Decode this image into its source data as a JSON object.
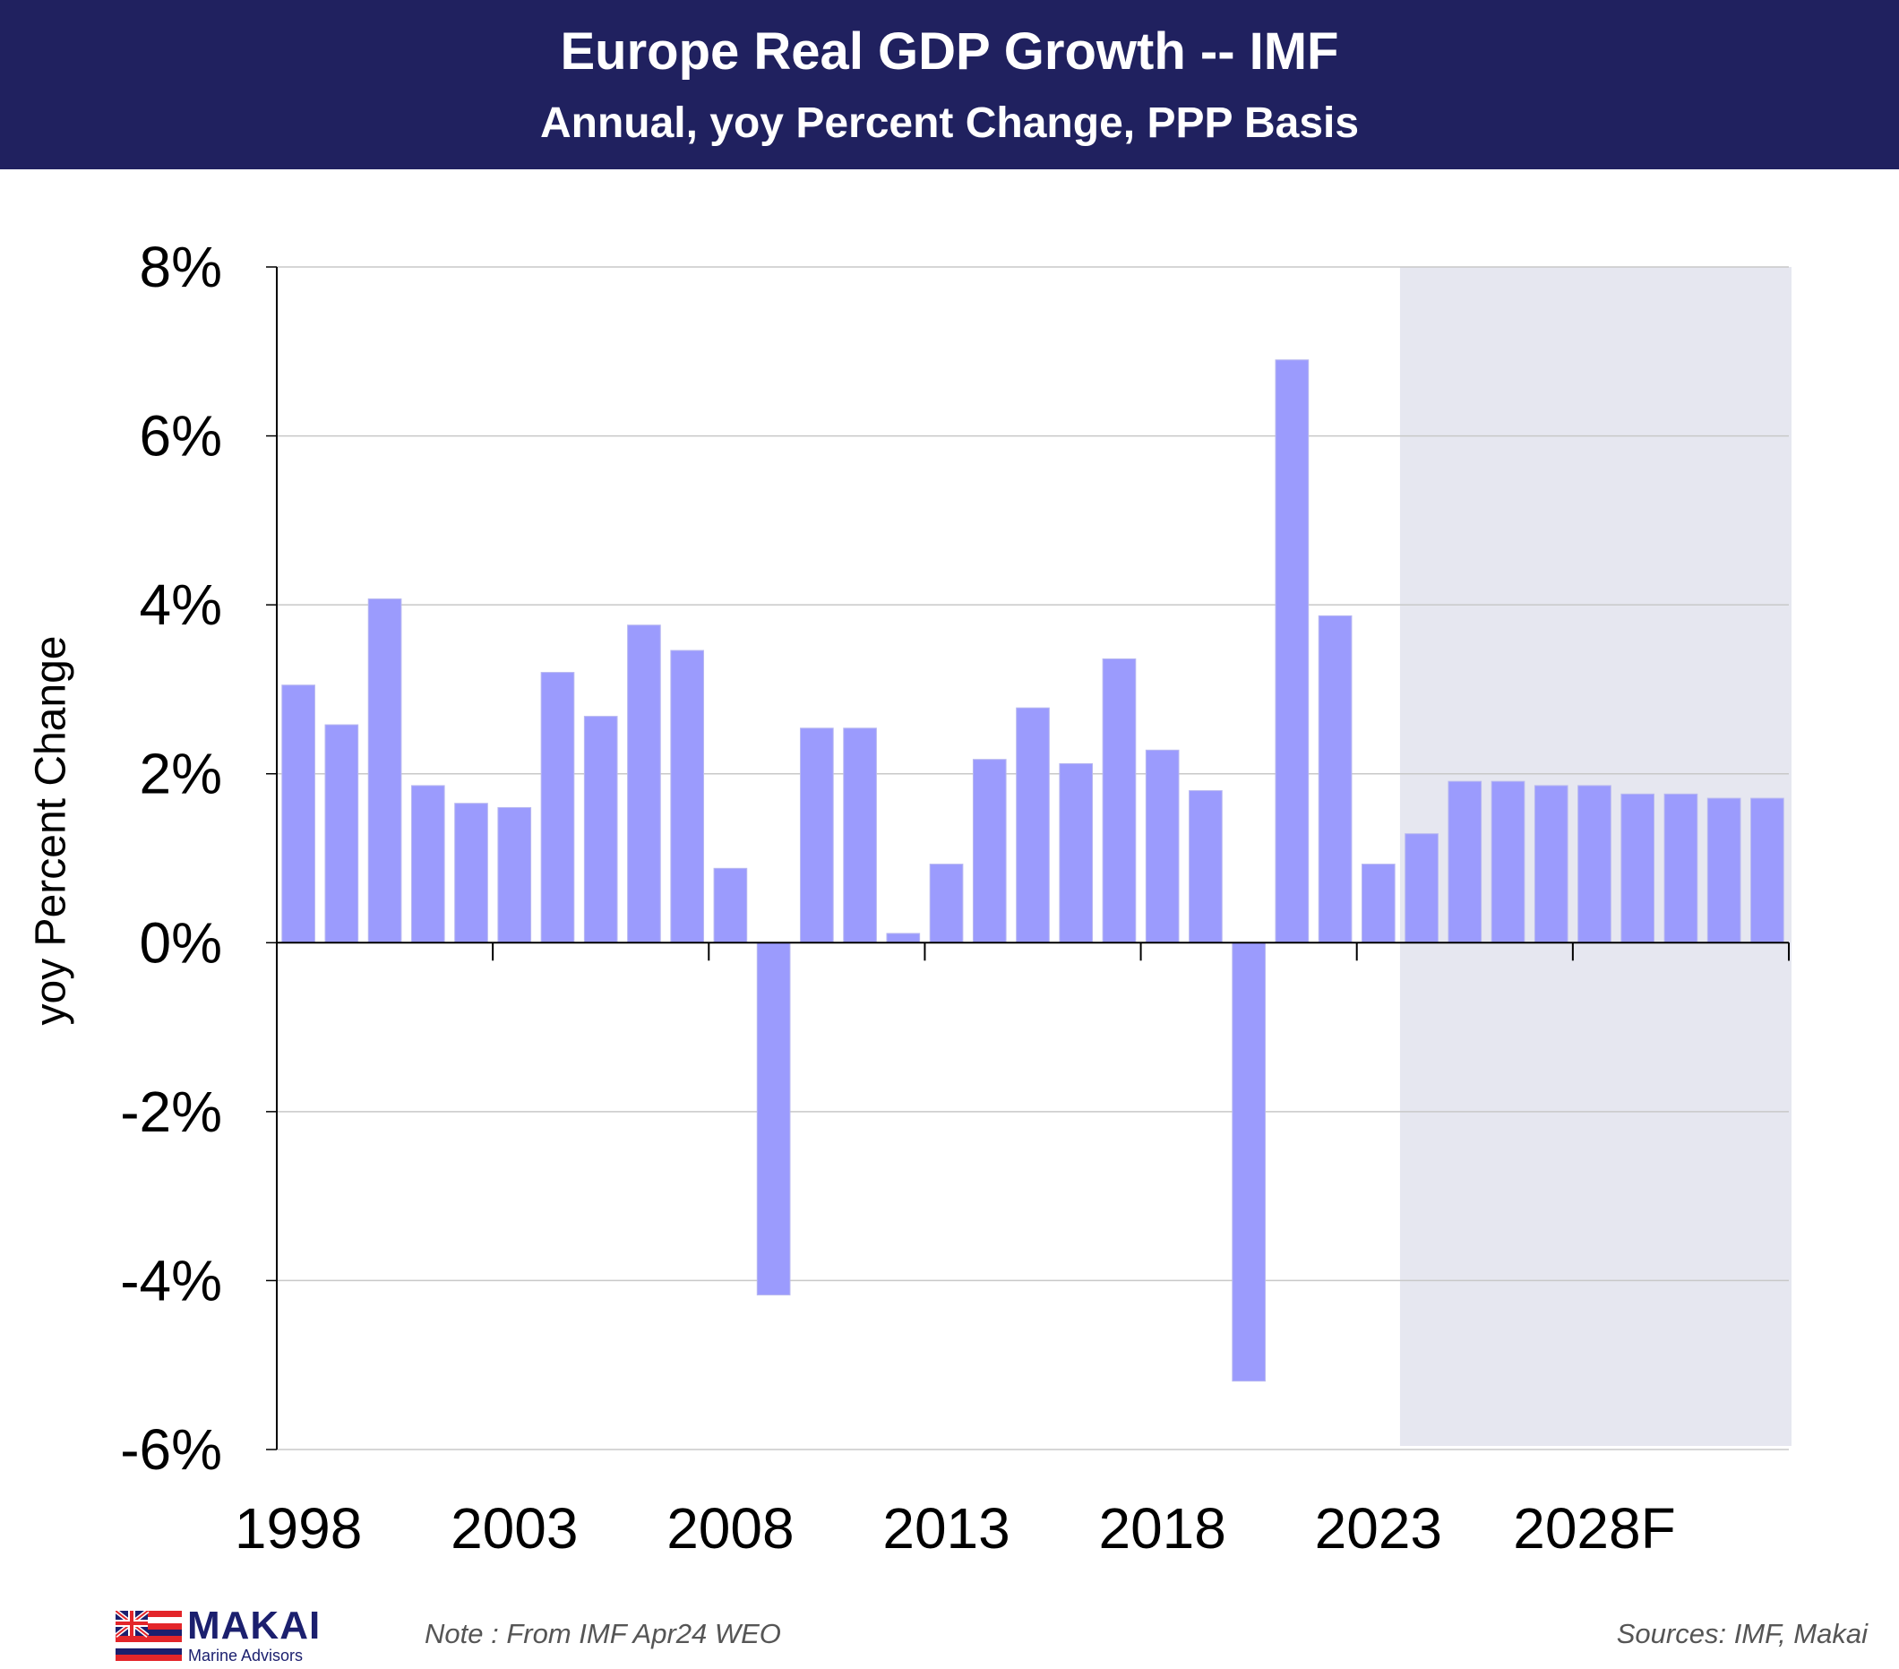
{
  "chart_data": {
    "type": "bar",
    "title": "Europe Real GDP Growth -- IMF",
    "subtitle": "Annual, yoy Percent Change, PPP Basis",
    "xlabel": "",
    "ylabel": "yoy Percent Change",
    "ylim": [
      -6,
      8
    ],
    "yticks": [
      -6,
      -4,
      -2,
      0,
      2,
      4,
      6,
      8
    ],
    "ytick_labels": [
      "-6%",
      "-4%",
      "-2%",
      "0%",
      "2%",
      "4%",
      "6%",
      "8%"
    ],
    "grid": true,
    "categories": [
      "1998",
      "1999",
      "2000",
      "2001",
      "2002",
      "2003",
      "2004",
      "2005",
      "2006",
      "2007",
      "2008",
      "2009",
      "2010",
      "2011",
      "2012",
      "2013",
      "2014",
      "2015",
      "2016",
      "2017",
      "2018",
      "2019",
      "2020",
      "2021",
      "2022",
      "2023",
      "2024",
      "2025",
      "2026",
      "2027",
      "2028",
      "2029",
      "2030",
      "2031",
      "2032"
    ],
    "values": [
      3.05,
      2.58,
      4.07,
      1.86,
      1.65,
      1.6,
      3.2,
      2.68,
      3.76,
      3.46,
      0.88,
      -4.17,
      2.54,
      2.54,
      0.11,
      0.93,
      2.17,
      2.78,
      2.12,
      3.36,
      2.28,
      1.8,
      -5.19,
      6.9,
      3.87,
      0.93,
      1.29,
      1.91,
      1.91,
      1.86,
      1.86,
      1.76,
      1.76,
      1.71,
      1.71
    ],
    "xtick_labels": [
      {
        "index": 0,
        "label": "1998"
      },
      {
        "index": 5,
        "label": "2003"
      },
      {
        "index": 10,
        "label": "2008"
      },
      {
        "index": 15,
        "label": "2013"
      },
      {
        "index": 20,
        "label": "2018"
      },
      {
        "index": 25,
        "label": "2023"
      },
      {
        "index": 30,
        "label": "2028F"
      }
    ],
    "forecast_start_index": 26,
    "bar_color": "#9b9bfd",
    "forecast_shade_color": "#e6e7f0"
  },
  "header": {
    "title": "Europe Real GDP Growth -- IMF",
    "subtitle": "Annual, yoy Percent Change, PPP Basis",
    "bg_color": "#20215f"
  },
  "footer": {
    "note": "Note : From IMF Apr24 WEO",
    "sources": "Sources:  IMF,  Makai",
    "logo_name": "MAKAI",
    "logo_sub": "Marine Advisors"
  }
}
